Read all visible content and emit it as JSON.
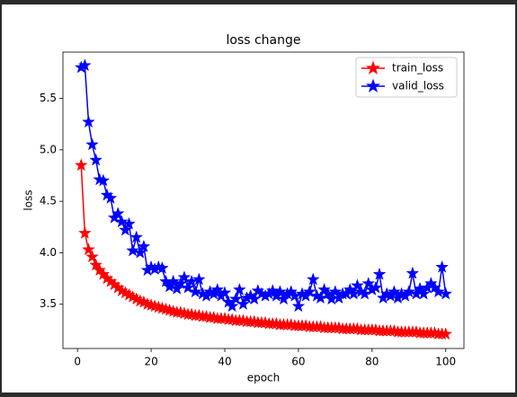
{
  "chart_data": {
    "type": "line",
    "title": "loss change",
    "x_label": "epoch",
    "y_label": "loss",
    "x": [
      1,
      2,
      3,
      4,
      5,
      6,
      7,
      8,
      9,
      10,
      11,
      12,
      13,
      14,
      15,
      16,
      17,
      18,
      19,
      20,
      21,
      22,
      23,
      24,
      25,
      26,
      27,
      28,
      29,
      30,
      31,
      32,
      33,
      34,
      35,
      36,
      37,
      38,
      39,
      40,
      41,
      42,
      43,
      44,
      45,
      46,
      47,
      48,
      49,
      50,
      51,
      52,
      53,
      54,
      55,
      56,
      57,
      58,
      59,
      60,
      61,
      62,
      63,
      64,
      65,
      66,
      67,
      68,
      69,
      70,
      71,
      72,
      73,
      74,
      75,
      76,
      77,
      78,
      79,
      80,
      81,
      82,
      83,
      84,
      85,
      86,
      87,
      88,
      89,
      90,
      91,
      92,
      93,
      94,
      95,
      96,
      97,
      98,
      99,
      100
    ],
    "series": [
      {
        "name": "train_loss",
        "color": "#ff0000",
        "values": [
          4.85,
          4.19,
          4.03,
          3.96,
          3.88,
          3.83,
          3.79,
          3.75,
          3.72,
          3.69,
          3.66,
          3.63,
          3.61,
          3.59,
          3.57,
          3.55,
          3.53,
          3.52,
          3.5,
          3.49,
          3.48,
          3.47,
          3.46,
          3.45,
          3.44,
          3.43,
          3.42,
          3.42,
          3.41,
          3.4,
          3.4,
          3.39,
          3.39,
          3.38,
          3.38,
          3.37,
          3.37,
          3.36,
          3.36,
          3.36,
          3.35,
          3.35,
          3.34,
          3.34,
          3.34,
          3.33,
          3.33,
          3.33,
          3.32,
          3.32,
          3.32,
          3.31,
          3.31,
          3.31,
          3.3,
          3.3,
          3.3,
          3.3,
          3.29,
          3.29,
          3.29,
          3.29,
          3.28,
          3.28,
          3.28,
          3.28,
          3.27,
          3.27,
          3.27,
          3.27,
          3.27,
          3.26,
          3.26,
          3.26,
          3.26,
          3.26,
          3.25,
          3.25,
          3.25,
          3.25,
          3.25,
          3.24,
          3.24,
          3.24,
          3.24,
          3.24,
          3.23,
          3.23,
          3.23,
          3.23,
          3.23,
          3.23,
          3.22,
          3.22,
          3.22,
          3.22,
          3.22,
          3.21,
          3.21,
          3.21
        ]
      },
      {
        "name": "valid_loss",
        "color": "#0000ff",
        "values": [
          5.8,
          5.82,
          5.27,
          5.05,
          4.9,
          4.71,
          4.7,
          4.56,
          4.53,
          4.34,
          4.38,
          4.3,
          4.22,
          4.28,
          4.02,
          4.15,
          4.0,
          4.06,
          3.83,
          3.86,
          3.84,
          3.86,
          3.85,
          3.72,
          3.67,
          3.72,
          3.65,
          3.7,
          3.76,
          3.66,
          3.72,
          3.62,
          3.74,
          3.6,
          3.58,
          3.62,
          3.6,
          3.64,
          3.58,
          3.61,
          3.52,
          3.48,
          3.55,
          3.64,
          3.5,
          3.56,
          3.58,
          3.55,
          3.63,
          3.6,
          3.58,
          3.6,
          3.63,
          3.58,
          3.62,
          3.55,
          3.6,
          3.62,
          3.58,
          3.48,
          3.6,
          3.58,
          3.62,
          3.74,
          3.58,
          3.56,
          3.64,
          3.6,
          3.55,
          3.62,
          3.56,
          3.6,
          3.6,
          3.64,
          3.6,
          3.68,
          3.62,
          3.6,
          3.7,
          3.64,
          3.66,
          3.79,
          3.56,
          3.6,
          3.58,
          3.62,
          3.56,
          3.6,
          3.58,
          3.62,
          3.8,
          3.6,
          3.65,
          3.6,
          3.66,
          3.7,
          3.66,
          3.62,
          3.86,
          3.6
        ]
      }
    ],
    "xlim": [
      -3.95,
      104.95
    ],
    "ylim": [
      3.07,
      5.95
    ],
    "xticks": [
      0,
      20,
      40,
      60,
      80,
      100
    ],
    "yticks": [
      3.5,
      {
        "value": 4,
        "label": "4.0"
      },
      4.5,
      {
        "value": 5,
        "label": "5.0"
      },
      5.5
    ],
    "marker": "star",
    "legend": "upper right"
  }
}
